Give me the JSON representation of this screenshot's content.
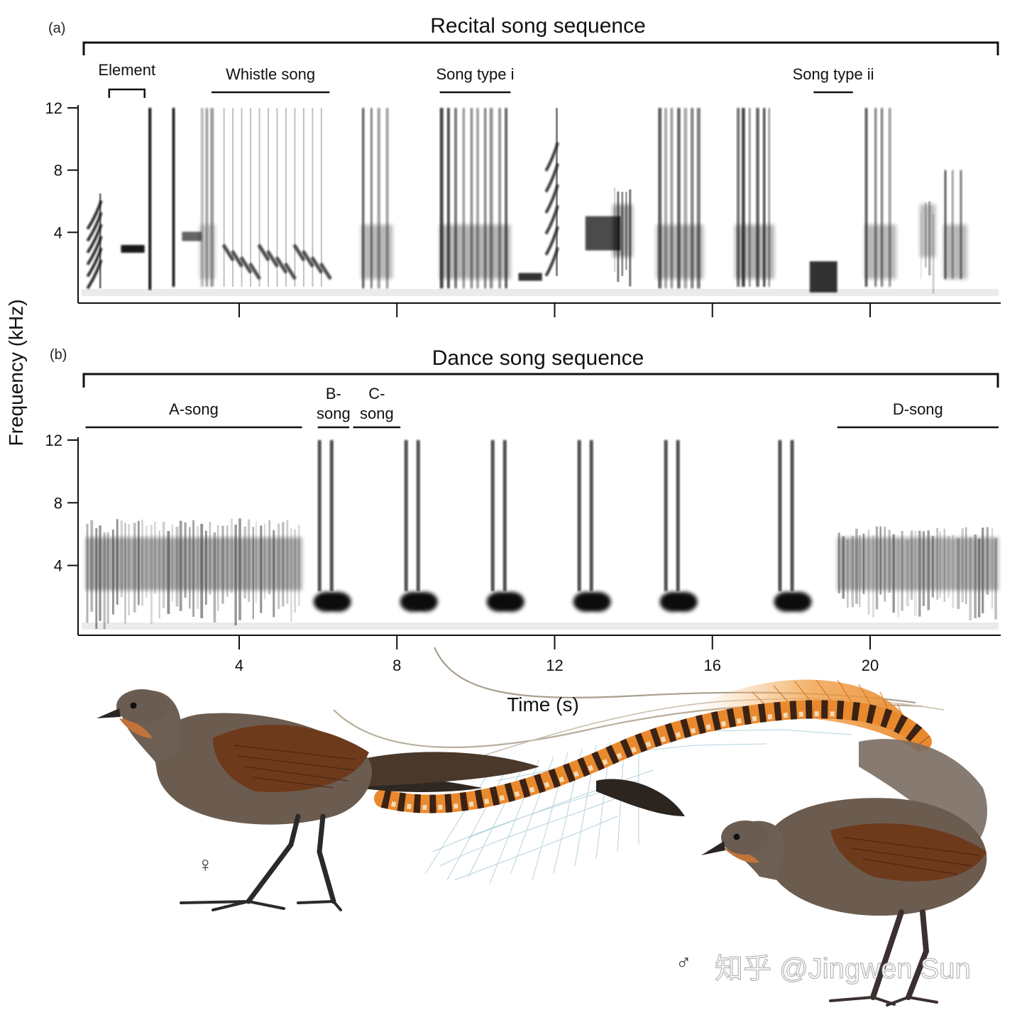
{
  "figure": {
    "y_axis_title": "Frequency (kHz)",
    "x_axis_title": "Time (s)",
    "x_tick_labels": [
      "4",
      "8",
      "12",
      "16",
      "20"
    ],
    "y_tick_labels": [
      "4",
      "8",
      "12"
    ],
    "watermark": "知乎 @Jingwen Sun",
    "female_symbol": "♀",
    "male_symbol": "♂"
  },
  "panels": [
    {
      "label": "(a)",
      "title": "Recital song sequence",
      "segments": [
        {
          "label": "Element",
          "start_s": 0.7,
          "end_s": 1.6
        },
        {
          "label": "Whistle song",
          "start_s": 3.3,
          "end_s": 6.3
        },
        {
          "label": "Song type i",
          "start_s": 9.1,
          "end_s": 10.9
        },
        {
          "label": "Song type ii",
          "start_s": 18.6,
          "end_s": 19.6
        }
      ]
    },
    {
      "label": "(b)",
      "title": "Dance song sequence",
      "segments": [
        {
          "label": "A-song",
          "start_s": 0.1,
          "end_s": 5.6
        },
        {
          "label": "B-\nsong",
          "start_s": 6.0,
          "end_s": 6.8
        },
        {
          "label": "C-\nsong",
          "start_s": 6.9,
          "end_s": 8.1
        },
        {
          "label": "D-song",
          "start_s": 19.2,
          "end_s": 23.3
        }
      ]
    }
  ],
  "chart_data": {
    "type": "heatmap",
    "xlabel": "Time (s)",
    "ylabel": "Frequency (kHz)",
    "xlim": [
      0,
      23.3
    ],
    "ylim": [
      0,
      12
    ],
    "x_ticks": [
      4,
      8,
      12,
      16,
      20
    ],
    "y_ticks": [
      4,
      8,
      12
    ],
    "panels": [
      {
        "title": "Recital song sequence",
        "events": [
          {
            "t": 0.15,
            "dur": 0.35,
            "fmin": 0.4,
            "fmax": 6.5,
            "intensity": 0.85,
            "kind": "sweep"
          },
          {
            "t": 1.0,
            "dur": 0.6,
            "fmin": 2.8,
            "fmax": 3.3,
            "intensity": 0.9,
            "kind": "tone"
          },
          {
            "t": 1.7,
            "dur": 0.1,
            "fmin": 0.3,
            "fmax": 12,
            "intensity": 0.95,
            "kind": "click"
          },
          {
            "t": 2.3,
            "dur": 0.1,
            "fmin": 0.5,
            "fmax": 12,
            "intensity": 0.9,
            "kind": "click"
          },
          {
            "t": 2.55,
            "dur": 0.5,
            "fmin": 3.6,
            "fmax": 4.2,
            "intensity": 0.6,
            "kind": "tone"
          },
          {
            "t": 3.0,
            "dur": 0.4,
            "fmin": 0.5,
            "fmax": 12,
            "intensity": 0.6,
            "kind": "cluster"
          },
          {
            "t": 3.6,
            "dur": 2.7,
            "fmin": 0.5,
            "fmax": 12,
            "intensity": 0.7,
            "kind": "whistles"
          },
          {
            "t": 7.1,
            "dur": 0.8,
            "fmin": 0.4,
            "fmax": 12,
            "intensity": 0.8,
            "kind": "cluster"
          },
          {
            "t": 9.1,
            "dur": 1.8,
            "fmin": 0.4,
            "fmax": 12,
            "intensity": 0.85,
            "kind": "cluster"
          },
          {
            "t": 11.1,
            "dur": 0.6,
            "fmin": 1.0,
            "fmax": 1.5,
            "intensity": 0.8,
            "kind": "tone"
          },
          {
            "t": 11.8,
            "dur": 0.3,
            "fmin": 1.2,
            "fmax": 12,
            "intensity": 0.8,
            "kind": "sweep"
          },
          {
            "t": 12.8,
            "dur": 0.9,
            "fmin": 3.8,
            "fmax": 6.0,
            "intensity": 0.7,
            "kind": "tone"
          },
          {
            "t": 13.5,
            "dur": 0.5,
            "fmin": 0.5,
            "fmax": 7.0,
            "intensity": 0.8,
            "kind": "noise"
          },
          {
            "t": 14.6,
            "dur": 1.2,
            "fmin": 0.4,
            "fmax": 12,
            "intensity": 0.85,
            "kind": "cluster"
          },
          {
            "t": 16.6,
            "dur": 1.0,
            "fmin": 0.5,
            "fmax": 12,
            "intensity": 0.9,
            "kind": "cluster"
          },
          {
            "t": 18.5,
            "dur": 0.7,
            "fmin": 1.0,
            "fmax": 3.0,
            "intensity": 0.8,
            "kind": "tone"
          },
          {
            "t": 19.9,
            "dur": 0.8,
            "fmin": 0.5,
            "fmax": 12,
            "intensity": 0.8,
            "kind": "cluster"
          },
          {
            "t": 21.3,
            "dur": 0.4,
            "fmin": 0.3,
            "fmax": 6.0,
            "intensity": 0.6,
            "kind": "noise"
          },
          {
            "t": 21.9,
            "dur": 0.6,
            "fmin": 1.0,
            "fmax": 8.0,
            "intensity": 0.8,
            "kind": "cluster"
          }
        ]
      },
      {
        "title": "Dance song sequence",
        "events": [
          {
            "t": 0.1,
            "dur": 5.5,
            "fmin": 0.5,
            "fmax": 7.0,
            "intensity": 0.75,
            "kind": "noise"
          },
          {
            "t": 6.0,
            "dur": 0.8,
            "fmin": 1.0,
            "fmax": 12,
            "intensity": 0.95,
            "kind": "pair"
          },
          {
            "t": 8.2,
            "dur": 0.8,
            "fmin": 1.0,
            "fmax": 12,
            "intensity": 0.95,
            "kind": "pair"
          },
          {
            "t": 10.4,
            "dur": 0.8,
            "fmin": 1.0,
            "fmax": 12,
            "intensity": 0.95,
            "kind": "pair"
          },
          {
            "t": 12.6,
            "dur": 0.8,
            "fmin": 1.0,
            "fmax": 12,
            "intensity": 0.95,
            "kind": "pair"
          },
          {
            "t": 14.8,
            "dur": 0.8,
            "fmin": 1.0,
            "fmax": 12,
            "intensity": 0.95,
            "kind": "pair"
          },
          {
            "t": 17.7,
            "dur": 0.8,
            "fmin": 1.0,
            "fmax": 12,
            "intensity": 0.95,
            "kind": "pair"
          },
          {
            "t": 19.2,
            "dur": 4.1,
            "fmin": 1.0,
            "fmax": 6.5,
            "intensity": 0.7,
            "kind": "noise"
          }
        ]
      }
    ]
  },
  "colors": {
    "spectrogram_ink": "#000000",
    "bird_body": "#6b5c4f",
    "bird_wing": "#6e3a1c",
    "tail_orange": "#e9892e",
    "tail_cream": "#f3e2c4",
    "tail_dark": "#3a2214",
    "filamentary": "#a9cbd8",
    "throat": "#c3733a"
  }
}
